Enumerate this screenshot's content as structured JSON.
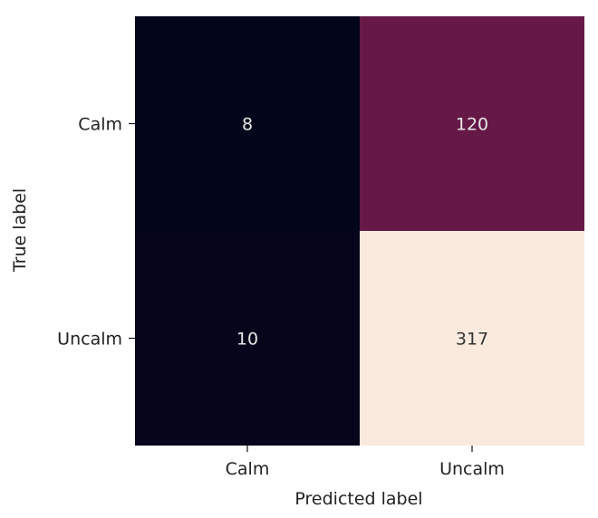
{
  "chart_data": {
    "type": "heatmap",
    "title": "",
    "xlabel": "Predicted label",
    "ylabel": "True label",
    "x_categories": [
      "Calm",
      "Uncalm"
    ],
    "y_categories": [
      "Calm",
      "Uncalm"
    ],
    "values": [
      [
        8,
        120
      ],
      [
        10,
        317
      ]
    ],
    "value_range": [
      8,
      317
    ],
    "colormap": "rocket",
    "colorbar": false,
    "annotations": true,
    "colors": {
      "low": "#03051a",
      "mid": "#8b2158",
      "high": "#faeade",
      "dark_text": "#333333",
      "light_text": "#e6e6e6"
    }
  }
}
